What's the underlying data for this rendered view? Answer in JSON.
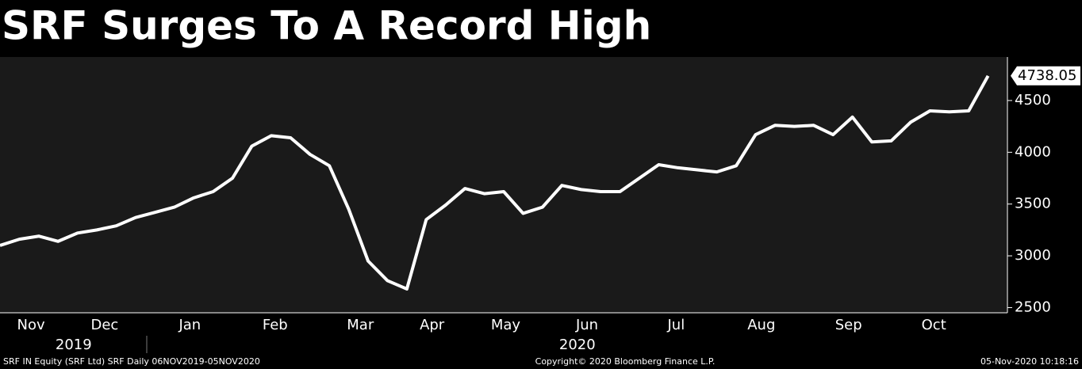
{
  "chart_data": {
    "type": "line",
    "title": "SRF Surges To A Record High",
    "values": [
      3100,
      3160,
      3190,
      3140,
      3220,
      3250,
      3290,
      3370,
      3420,
      3470,
      3560,
      3620,
      3750,
      4060,
      4160,
      4140,
      3980,
      3870,
      3450,
      2950,
      2760,
      2680,
      3350,
      3490,
      3650,
      3600,
      3620,
      3410,
      3470,
      3680,
      3640,
      3620,
      3620,
      3750,
      3880,
      3850,
      3830,
      3810,
      3870,
      4170,
      4260,
      4250,
      4260,
      4170,
      4340,
      4100,
      4110,
      4290,
      4400,
      4390,
      4400,
      4738.05
    ],
    "color": "#ffffff",
    "xlim": [
      0,
      52
    ],
    "xticks": [
      {
        "value": 1.6,
        "label": "Nov"
      },
      {
        "value": 5.4,
        "label": "Dec"
      },
      {
        "value": 9.8,
        "label": "Jan"
      },
      {
        "value": 14.2,
        "label": "Feb"
      },
      {
        "value": 18.6,
        "label": "Mar"
      },
      {
        "value": 22.3,
        "label": "Apr"
      },
      {
        "value": 26.1,
        "label": "May"
      },
      {
        "value": 30.3,
        "label": "Jun"
      },
      {
        "value": 34.9,
        "label": "Jul"
      },
      {
        "value": 39.3,
        "label": "Aug"
      },
      {
        "value": 43.8,
        "label": "Sep"
      },
      {
        "value": 48.2,
        "label": "Oct"
      }
    ],
    "xgroups": [
      {
        "value": 3.8,
        "label": "2019"
      },
      {
        "value": 29.8,
        "label": "2020"
      }
    ],
    "ylim": [
      2450,
      4920
    ],
    "yticks": [
      2500,
      3000,
      3500,
      4000,
      4500
    ],
    "footer": [
      "SRF IN Equity (SRF Ltd) SRF  Daily 06NOV2019-05NOV2020",
      "Copyright© 2020 Bloomberg Finance L.P.",
      "05-Nov-2020 10:18:16"
    ]
  }
}
